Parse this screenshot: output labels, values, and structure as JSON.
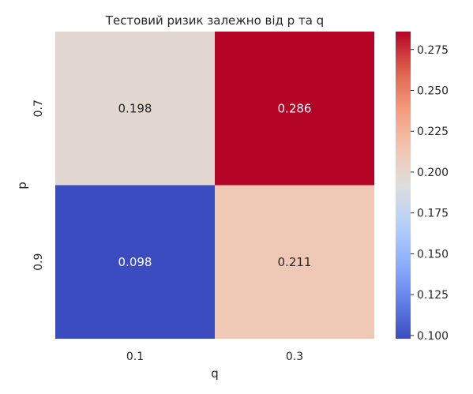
{
  "chart_data": {
    "type": "heatmap",
    "title": "Тестовий ризик залежно від p та q",
    "xlabel": "q",
    "ylabel": "p",
    "x_categories": [
      "0.1",
      "0.3"
    ],
    "y_categories": [
      "0.7",
      "0.9"
    ],
    "values": [
      [
        0.198,
        0.286
      ],
      [
        0.098,
        0.211
      ]
    ],
    "value_labels": [
      [
        "0.198",
        "0.286"
      ],
      [
        "0.098",
        "0.211"
      ]
    ],
    "colormap": "coolwarm",
    "colorbar": {
      "min": 0.098,
      "max": 0.286,
      "ticks": [
        0.1,
        0.125,
        0.15,
        0.175,
        0.2,
        0.225,
        0.25,
        0.275
      ],
      "tick_labels": [
        "0.100",
        "0.125",
        "0.150",
        "0.175",
        "0.200",
        "0.225",
        "0.250",
        "0.275"
      ]
    },
    "cell_label_colors": {
      "dark": "#262626",
      "light": "#ffffff"
    }
  }
}
